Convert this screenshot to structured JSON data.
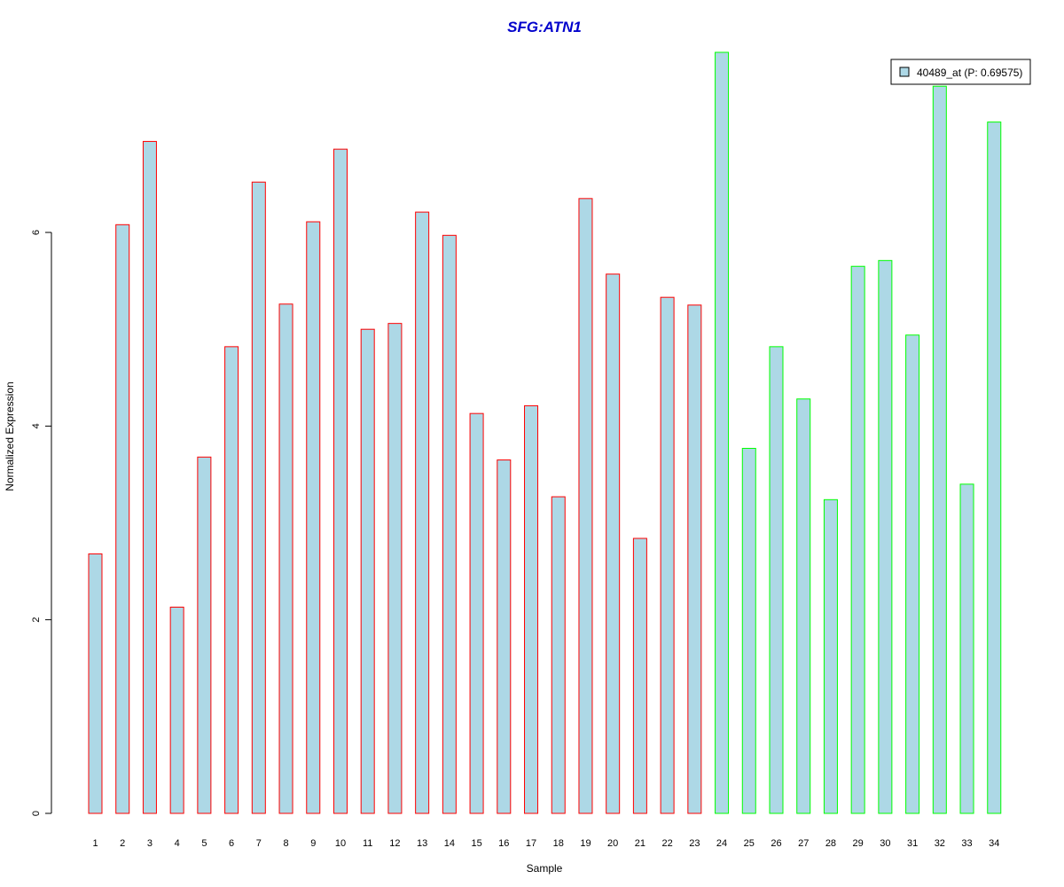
{
  "chart_data": {
    "type": "bar",
    "title": "SFG:ATN1",
    "xlabel": "Sample",
    "ylabel": "Normalized Expression",
    "ylim": [
      0,
      7.86
    ],
    "yticks": [
      0,
      2,
      4,
      6
    ],
    "categories": [
      "1",
      "2",
      "3",
      "4",
      "5",
      "6",
      "7",
      "8",
      "9",
      "10",
      "11",
      "12",
      "13",
      "14",
      "15",
      "16",
      "17",
      "18",
      "19",
      "20",
      "21",
      "22",
      "23",
      "24",
      "25",
      "26",
      "27",
      "28",
      "29",
      "30",
      "31",
      "32",
      "33",
      "34"
    ],
    "series": [
      {
        "name": "40489_at (P: 0.69575)",
        "values": [
          2.68,
          6.08,
          6.94,
          2.13,
          3.68,
          4.82,
          6.52,
          5.26,
          6.11,
          6.86,
          5.0,
          5.06,
          6.21,
          5.97,
          4.13,
          3.65,
          4.21,
          3.27,
          6.35,
          5.57,
          2.84,
          5.33,
          5.25,
          7.86,
          3.77,
          4.82,
          4.28,
          3.24,
          5.65,
          5.71,
          4.94,
          7.51,
          3.4,
          7.14
        ]
      }
    ],
    "bar_fill": "#add8e6",
    "group_colors": [
      "#ff0000",
      "#00ff00"
    ],
    "groups": [
      0,
      0,
      0,
      0,
      0,
      0,
      0,
      0,
      0,
      0,
      0,
      0,
      0,
      0,
      0,
      0,
      0,
      0,
      0,
      0,
      0,
      0,
      0,
      1,
      1,
      1,
      1,
      1,
      1,
      1,
      1,
      1,
      1,
      1
    ],
    "title_color": "#0000cc",
    "grid": false,
    "legend_position": "top-right"
  }
}
